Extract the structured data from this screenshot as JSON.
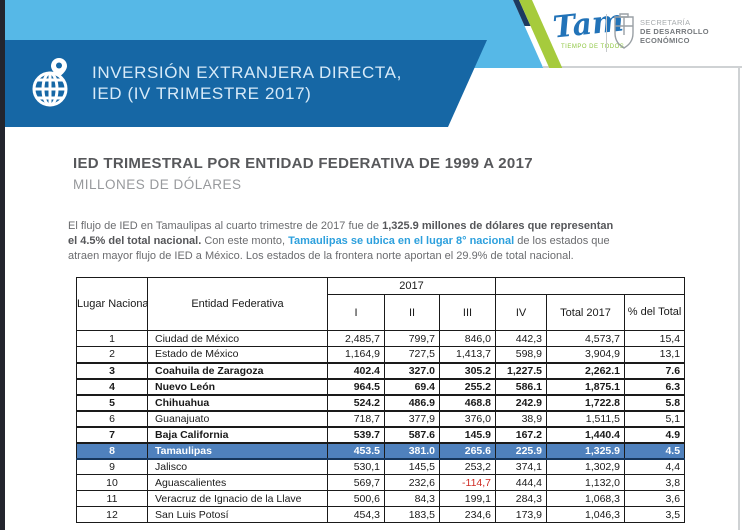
{
  "banner": {
    "title_line1": "INVERSIÓN EXTRANJERA DIRECTA,",
    "title_line2": "IED (IV TRIMESTRE 2017)"
  },
  "logos": {
    "tam_label": "Tam",
    "tam_tagline": "TIEMPO DE TODOS",
    "secretaria_line1": "SECRETARÍA",
    "secretaria_line2": "DE DESARROLLO",
    "secretaria_line3": "ECONÓMICO"
  },
  "heading": {
    "title": "IED TRIMESTRAL POR ENTIDAD FEDERATIVA DE 1999 A 2017",
    "subtitle": "MILLONES DE DÓLARES"
  },
  "intro": {
    "segments": [
      {
        "text": "El flujo de IED en Tamaulipas al cuarto trimestre de 2017 fue de ",
        "style": "normal"
      },
      {
        "text": "1,325.9 millones de dólares que representan",
        "style": "bold",
        "br": true
      },
      {
        "text": "el 4.5% del total nacional.",
        "style": "bold"
      },
      {
        "text": " Con este monto, ",
        "style": "normal"
      },
      {
        "text": "Tamaulipas se ubica en el lugar 8° nacional",
        "style": "bold-blue"
      },
      {
        "text": " de los estados que",
        "style": "normal",
        "br": true
      },
      {
        "text": "atraen mayor flujo de IED a México. Los estados de la frontera norte aportan el 29.9% de total nacional.",
        "style": "normal"
      }
    ]
  },
  "table": {
    "year_label": "2017",
    "columns": [
      "Lugar Nacional",
      "Entidad Federativa",
      "I",
      "II",
      "III",
      "IV",
      "Total 2017",
      "% del Total"
    ],
    "rows": [
      {
        "lugar": "1",
        "entidad": "Ciudad de México",
        "I": "2,485,7",
        "II": "799,7",
        "III": "846,0",
        "IV": "442,3",
        "total": "4,573,7",
        "pct": "15,4",
        "style": "normal"
      },
      {
        "lugar": "2",
        "entidad": "Estado de México",
        "I": "1,164,9",
        "II": "727,5",
        "III": "1,413,7",
        "IV": "598,9",
        "total": "3,904,9",
        "pct": "13,1",
        "style": "normal"
      },
      {
        "lugar": "3",
        "entidad": "Coahuila de Zaragoza",
        "I": "402.4",
        "II": "327.0",
        "III": "305.2",
        "IV": "1,227.5",
        "total": "2,262.1",
        "pct": "7.6",
        "style": "bold"
      },
      {
        "lugar": "4",
        "entidad": "Nuevo León",
        "I": "964.5",
        "II": "69.4",
        "III": "255.2",
        "IV": "586.1",
        "total": "1,875.1",
        "pct": "6.3",
        "style": "bold"
      },
      {
        "lugar": "5",
        "entidad": "Chihuahua",
        "I": "524.2",
        "II": "486.9",
        "III": "468.8",
        "IV": "242.9",
        "total": "1,722.8",
        "pct": "5.8",
        "style": "bold"
      },
      {
        "lugar": "6",
        "entidad": "Guanajuato",
        "I": "718,7",
        "II": "377,9",
        "III": "376,0",
        "IV": "38,9",
        "total": "1,511,5",
        "pct": "5,1",
        "style": "normal"
      },
      {
        "lugar": "7",
        "entidad": "Baja California",
        "I": "539.7",
        "II": "587.6",
        "III": "145.9",
        "IV": "167.2",
        "total": "1,440.4",
        "pct": "4.9",
        "style": "bold"
      },
      {
        "lugar": "8",
        "entidad": "Tamaulipas",
        "I": "453.5",
        "II": "381.0",
        "III": "265.6",
        "IV": "225.9",
        "total": "1,325.9",
        "pct": "4.5",
        "style": "highlight"
      },
      {
        "lugar": "9",
        "entidad": "Jalisco",
        "I": "530,1",
        "II": "145,5",
        "III": "253,2",
        "IV": "374,1",
        "total": "1,302,9",
        "pct": "4,4",
        "style": "normal"
      },
      {
        "lugar": "10",
        "entidad": "Aguascalientes",
        "I": "569,7",
        "II": "232,6",
        "III": "-114,7",
        "IV": "444,4",
        "total": "1,132,0",
        "pct": "3,8",
        "style": "normal",
        "negative_col": "III"
      },
      {
        "lugar": "11",
        "entidad": "Veracruz de Ignacio de la Llave",
        "I": "500,6",
        "II": "84,3",
        "III": "199,1",
        "IV": "284,3",
        "total": "1,068,3",
        "pct": "3,6",
        "style": "normal"
      },
      {
        "lugar": "12",
        "entidad": "San Luis Potosí",
        "I": "454,3",
        "II": "183,5",
        "III": "234,6",
        "IV": "173,9",
        "total": "1,046,3",
        "pct": "3,5",
        "style": "normal"
      }
    ]
  },
  "colors": {
    "light_blue": "#56b8e7",
    "banner_blue": "#1667a5",
    "accent_green": "#a6cb3c",
    "highlight_row_blue": "#4f81bd",
    "negative_red": "#cf2b24",
    "link_blue": "#2da0dd"
  }
}
